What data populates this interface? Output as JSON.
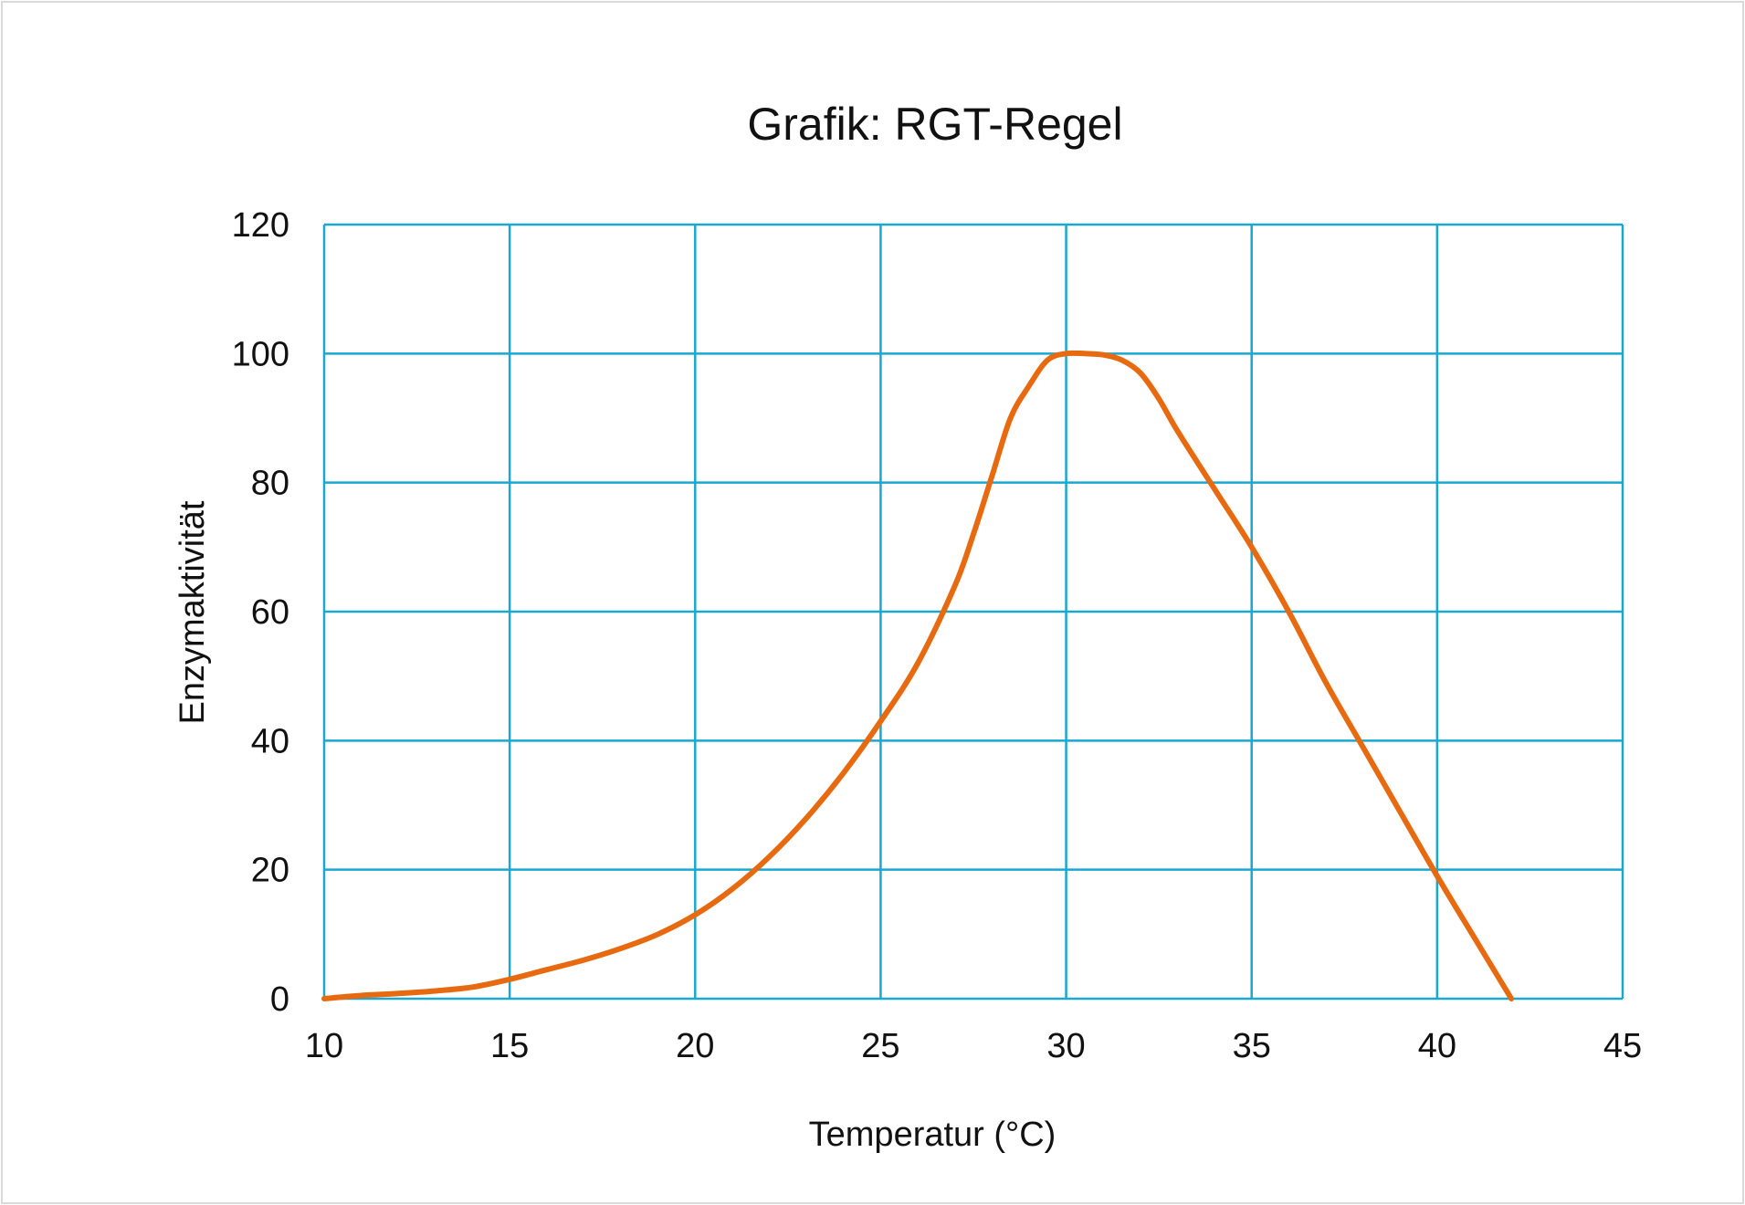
{
  "chart_data": {
    "type": "line",
    "title": "Grafik: RGT-Regel",
    "xlabel": "Temperatur (°C)",
    "ylabel": "Enzymaktivität",
    "xlim": [
      10,
      45
    ],
    "ylim": [
      0,
      120
    ],
    "x_ticks": [
      "10",
      "15",
      "20",
      "25",
      "30",
      "35",
      "40",
      "45"
    ],
    "y_ticks": [
      "0",
      "20",
      "40",
      "60",
      "80",
      "100",
      "120"
    ],
    "grid": true,
    "legend": "none",
    "series": [
      {
        "x": [
          10,
          11,
          12,
          13,
          14,
          15,
          16,
          17,
          18,
          19,
          20,
          21,
          22,
          23,
          24,
          25,
          26,
          27,
          27.5,
          28,
          28.5,
          29,
          29.5,
          30,
          30.5,
          31,
          31.5,
          32,
          32.5,
          33,
          34,
          35,
          36,
          37,
          38,
          39,
          40,
          41,
          42
        ],
        "y": [
          0,
          0.5,
          0.8,
          1.2,
          1.8,
          3,
          4.5,
          6,
          7.8,
          10,
          13,
          17,
          22,
          28,
          35,
          43,
          52,
          64,
          72,
          81,
          90,
          95,
          99,
          100,
          100,
          99.8,
          99,
          97,
          93,
          88,
          79,
          70,
          60,
          49,
          39,
          29,
          19,
          9.5,
          0
        ]
      }
    ],
    "colors": {
      "grid": "#1aa7d0",
      "line": "#e86a10"
    }
  }
}
